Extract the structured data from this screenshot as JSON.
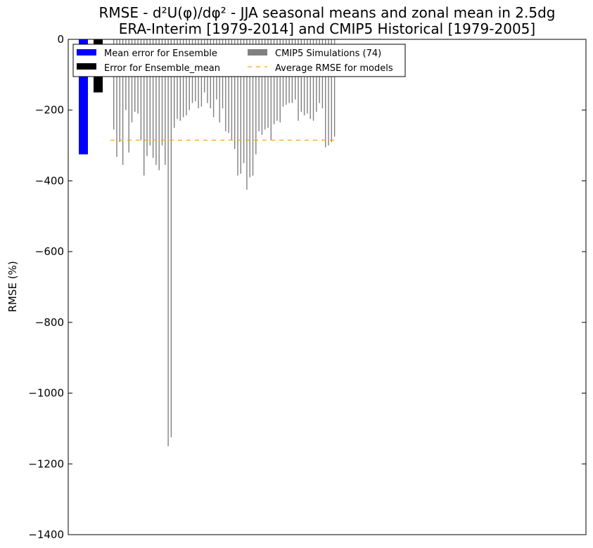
{
  "chart_data": {
    "type": "bar",
    "title": "RMSE - d²U(φ)/dφ² - JJA seasonal means and zonal mean in 2.5dg",
    "subtitle": "ERA-Interim [1979-2014] and CMIP5 Historical [1979-2005]",
    "xlabel": "",
    "ylabel": "RMSE (%)",
    "ylim": [
      -1400,
      0
    ],
    "yticks": [
      0,
      -200,
      -400,
      -600,
      -800,
      -1000,
      -1200,
      -1400
    ],
    "grid": false,
    "legend_position": "top-left",
    "ensemble_mean_error": -325,
    "ensemble_mean_field_error": -150,
    "average_rmse_models": -285,
    "model_values": [
      -255,
      -332,
      -290,
      -355,
      -200,
      -320,
      -235,
      -205,
      -210,
      -285,
      -385,
      -330,
      -300,
      -335,
      -355,
      -370,
      -300,
      -355,
      -1150,
      -1125,
      -250,
      -225,
      -230,
      -220,
      -215,
      -200,
      -180,
      -175,
      -195,
      -190,
      -150,
      -180,
      -195,
      -220,
      -170,
      -235,
      -195,
      -260,
      -265,
      -285,
      -310,
      -385,
      -380,
      -350,
      -425,
      -390,
      -385,
      -325,
      -260,
      -270,
      -255,
      -250,
      -285,
      -240,
      -230,
      -235,
      -190,
      -185,
      -180,
      -180,
      -170,
      -230,
      -205,
      -215,
      -210,
      -225,
      -230,
      -205,
      -180,
      -195,
      -305,
      -300,
      -290,
      -275
    ],
    "series": [
      {
        "name": "Mean error for Ensemble",
        "color": "#0000ff"
      },
      {
        "name": "Error for Ensemble_mean",
        "color": "#000000"
      },
      {
        "name": "CMIP5 Simulations (74)",
        "color": "#808080"
      },
      {
        "name": "Average RMSE for models",
        "color": "#ffa500"
      }
    ]
  }
}
